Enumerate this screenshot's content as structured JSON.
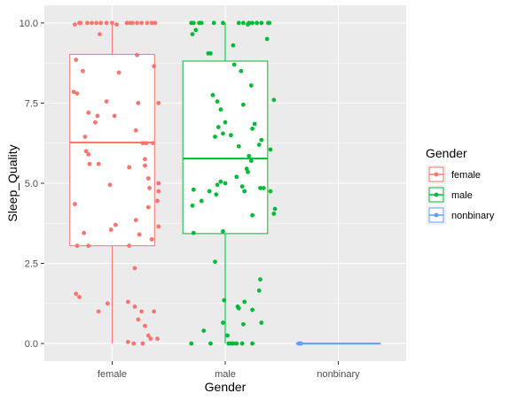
{
  "chart_data": {
    "type": "boxplot",
    "xlabel": "Gender",
    "ylabel": "Sleep_Quality",
    "categories": [
      "female",
      "male",
      "nonbinary"
    ],
    "ylim": [
      -0.55,
      10.55
    ],
    "y_ticks": [
      0.0,
      2.5,
      5.0,
      7.5,
      10.0
    ],
    "y_tick_labels": [
      "0.0",
      "2.5",
      "5.0",
      "7.5",
      "10.0"
    ],
    "grid": true,
    "legend": {
      "title": "Gender",
      "position": "right",
      "entries": [
        "female",
        "male",
        "nonbinary"
      ]
    },
    "colors": {
      "female": "#F8766D",
      "male": "#00BA38",
      "nonbinary": "#619CFF"
    },
    "boxes": [
      {
        "category": "female",
        "min": 0.0,
        "q1": 3.05,
        "median": 6.27,
        "q3": 9.02,
        "max": 10.0
      },
      {
        "category": "male",
        "min": 0.0,
        "q1": 3.43,
        "median": 5.77,
        "q3": 8.81,
        "max": 10.0
      },
      {
        "category": "nonbinary",
        "min": 0.0,
        "q1": 0.0,
        "median": 0.0,
        "q3": 0.0,
        "max": 0.0
      }
    ],
    "points": {
      "female": [
        [
          0.67,
          9.95
        ],
        [
          0.72,
          10.0
        ],
        [
          0.78,
          10.0
        ],
        [
          0.82,
          10.0
        ],
        [
          0.86,
          10.0
        ],
        [
          0.9,
          10.0
        ],
        [
          0.95,
          10.0
        ],
        [
          1.0,
          10.0
        ],
        [
          1.04,
          9.95
        ],
        [
          1.13,
          10.0
        ],
        [
          1.18,
          10.0
        ],
        [
          1.22,
          10.0
        ],
        [
          1.26,
          10.0
        ],
        [
          1.31,
          10.0
        ],
        [
          1.35,
          10.0
        ],
        [
          1.38,
          10.0
        ],
        [
          0.71,
          10.0
        ],
        [
          1.16,
          10.0
        ],
        [
          0.89,
          9.65
        ],
        [
          1.22,
          9.0
        ],
        [
          0.68,
          8.85
        ],
        [
          0.74,
          8.5
        ],
        [
          1.06,
          8.45
        ],
        [
          1.37,
          8.65
        ],
        [
          0.66,
          7.85
        ],
        [
          0.69,
          7.8
        ],
        [
          0.95,
          7.55
        ],
        [
          1.23,
          7.5
        ],
        [
          1.41,
          7.5
        ],
        [
          0.79,
          7.2
        ],
        [
          0.87,
          7.1
        ],
        [
          1.02,
          7.1
        ],
        [
          0.85,
          6.9
        ],
        [
          0.76,
          6.45
        ],
        [
          1.21,
          6.65
        ],
        [
          1.27,
          6.25
        ],
        [
          1.36,
          6.25
        ],
        [
          1.3,
          6.25
        ],
        [
          0.77,
          6.0
        ],
        [
          0.79,
          5.9
        ],
        [
          0.8,
          5.6
        ],
        [
          0.88,
          5.6
        ],
        [
          1.15,
          5.5
        ],
        [
          1.29,
          5.75
        ],
        [
          1.29,
          5.55
        ],
        [
          1.32,
          5.15
        ],
        [
          1.41,
          5.0
        ],
        [
          0.98,
          4.95
        ],
        [
          1.33,
          4.85
        ],
        [
          1.41,
          4.75
        ],
        [
          1.4,
          4.45
        ],
        [
          0.67,
          4.35
        ],
        [
          1.32,
          4.25
        ],
        [
          1.21,
          3.85
        ],
        [
          1.41,
          3.65
        ],
        [
          1.03,
          3.7
        ],
        [
          0.99,
          3.55
        ],
        [
          0.75,
          3.45
        ],
        [
          1.24,
          3.4
        ],
        [
          1.35,
          3.25
        ],
        [
          1.15,
          3.05
        ],
        [
          0.69,
          3.05
        ],
        [
          0.79,
          3.05
        ],
        [
          1.2,
          2.35
        ],
        [
          0.68,
          1.55
        ],
        [
          0.71,
          1.45
        ],
        [
          1.14,
          1.3
        ],
        [
          1.2,
          1.15
        ],
        [
          0.96,
          1.25
        ],
        [
          0.88,
          1.0
        ],
        [
          1.26,
          1.0
        ],
        [
          1.37,
          1.0
        ],
        [
          1.23,
          0.75
        ],
        [
          1.29,
          0.55
        ],
        [
          1.32,
          0.25
        ],
        [
          1.4,
          0.15
        ],
        [
          1.34,
          0.15
        ],
        [
          1.19,
          0.0
        ],
        [
          1.27,
          0.0
        ],
        [
          1.14,
          0.05
        ]
      ],
      "male": [
        [
          1.7,
          10.0
        ],
        [
          1.72,
          10.0
        ],
        [
          1.77,
          10.0
        ],
        [
          1.79,
          10.0
        ],
        [
          1.9,
          10.0
        ],
        [
          1.98,
          10.0
        ],
        [
          2.12,
          10.0
        ],
        [
          2.16,
          10.0
        ],
        [
          2.21,
          10.0
        ],
        [
          2.24,
          10.0
        ],
        [
          2.28,
          10.0
        ],
        [
          2.32,
          10.0
        ],
        [
          2.38,
          10.0
        ],
        [
          2.39,
          10.0
        ],
        [
          2.2,
          9.95
        ],
        [
          1.74,
          9.78
        ],
        [
          1.71,
          9.65
        ],
        [
          2.07,
          9.3
        ],
        [
          2.37,
          9.5
        ],
        [
          1.85,
          9.05
        ],
        [
          1.87,
          9.05
        ],
        [
          2.08,
          8.7
        ],
        [
          2.14,
          8.5
        ],
        [
          2.23,
          8.05
        ],
        [
          2.43,
          7.6
        ],
        [
          1.89,
          7.75
        ],
        [
          1.93,
          7.55
        ],
        [
          1.96,
          7.3
        ],
        [
          2.16,
          7.45
        ],
        [
          2.0,
          6.9
        ],
        [
          1.94,
          6.75
        ],
        [
          2.26,
          6.85
        ],
        [
          2.24,
          6.7
        ],
        [
          2.05,
          6.5
        ],
        [
          2.32,
          6.35
        ],
        [
          1.98,
          6.55
        ],
        [
          1.91,
          6.45
        ],
        [
          2.3,
          6.2
        ],
        [
          2.12,
          6.15
        ],
        [
          2.4,
          6.05
        ],
        [
          2.21,
          5.85
        ],
        [
          2.23,
          5.7
        ],
        [
          2.19,
          5.45
        ],
        [
          2.2,
          5.35
        ],
        [
          2.1,
          5.2
        ],
        [
          1.96,
          5.05
        ],
        [
          2.0,
          5.0
        ],
        [
          1.93,
          4.95
        ],
        [
          2.15,
          4.9
        ],
        [
          2.34,
          4.85
        ],
        [
          2.31,
          4.85
        ],
        [
          1.72,
          4.8
        ],
        [
          1.86,
          4.75
        ],
        [
          2.17,
          4.75
        ],
        [
          2.4,
          4.75
        ],
        [
          1.92,
          4.65
        ],
        [
          2.24,
          4.0
        ],
        [
          2.44,
          4.2
        ],
        [
          2.43,
          4.05
        ],
        [
          1.79,
          4.45
        ],
        [
          1.71,
          4.3
        ],
        [
          1.72,
          3.45
        ],
        [
          1.98,
          3.5
        ],
        [
          2.31,
          2.0
        ],
        [
          1.91,
          2.55
        ],
        [
          2.3,
          1.65
        ],
        [
          2.24,
          1.05
        ],
        [
          2.17,
          1.3
        ],
        [
          1.99,
          1.35
        ],
        [
          2.12,
          1.1
        ],
        [
          2.32,
          0.65
        ],
        [
          2.16,
          0.6
        ],
        [
          1.98,
          0.65
        ],
        [
          2.02,
          0.25
        ],
        [
          1.81,
          0.4
        ],
        [
          1.7,
          0.0
        ],
        [
          1.87,
          0.0
        ],
        [
          2.03,
          0.0
        ],
        [
          2.05,
          0.0
        ],
        [
          2.07,
          0.0
        ],
        [
          2.1,
          0.0
        ],
        [
          2.15,
          0.0
        ],
        [
          2.24,
          0.0
        ],
        [
          2.11,
          1.15
        ]
      ],
      "nonbinary": [
        [
          2.65,
          0.0
        ],
        [
          2.67,
          0.0
        ]
      ]
    }
  }
}
